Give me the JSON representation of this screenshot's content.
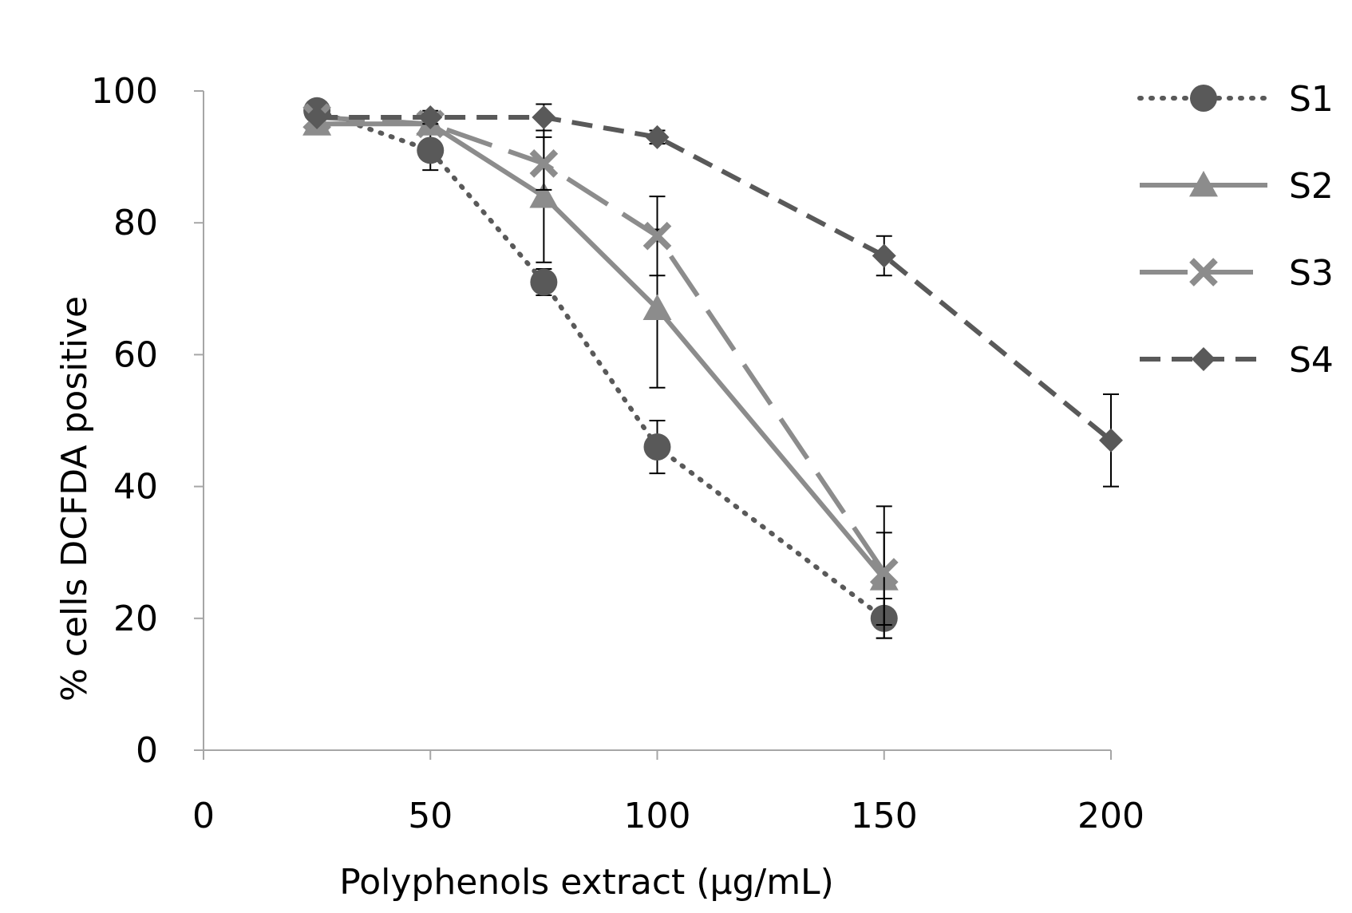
{
  "chart_data": {
    "type": "line",
    "title": "",
    "xlabel": "Polyphenols extract (μg/mL)",
    "ylabel": "% cells DCFDA positive",
    "xlim": [
      0,
      200
    ],
    "ylim": [
      0,
      100
    ],
    "x_ticks": [
      0,
      50,
      100,
      150,
      200
    ],
    "y_ticks": [
      0,
      20,
      40,
      60,
      80,
      100
    ],
    "x_tick_labels": [
      "0",
      "50",
      "100",
      "150",
      "200"
    ],
    "y_tick_labels": [
      "0",
      "20",
      "40",
      "60",
      "80",
      "100"
    ],
    "grid": false,
    "legend_position": "right",
    "series": [
      {
        "name": "S1",
        "marker": "circle",
        "line": "dotted",
        "color": "#595959",
        "x": [
          25,
          50,
          75,
          100,
          150
        ],
        "values": [
          97,
          91,
          71,
          46,
          20
        ],
        "errors": [
          0,
          3,
          2,
          4,
          3
        ]
      },
      {
        "name": "S2",
        "marker": "triangle",
        "line": "solid",
        "color": "#8c8c8c",
        "x": [
          25,
          50,
          75,
          100,
          150
        ],
        "values": [
          95,
          95,
          84,
          67,
          26
        ],
        "errors": [
          0,
          0,
          10,
          12,
          7
        ]
      },
      {
        "name": "S3",
        "marker": "x",
        "line": "longdash",
        "color": "#8c8c8c",
        "x": [
          25,
          50,
          75,
          100,
          150
        ],
        "values": [
          96,
          95,
          89,
          78,
          27
        ],
        "errors": [
          0,
          0,
          4,
          6,
          10
        ]
      },
      {
        "name": "S4",
        "marker": "diamond",
        "line": "dashed",
        "color": "#595959",
        "x": [
          25,
          50,
          75,
          100,
          150,
          200
        ],
        "values": [
          96,
          96,
          96,
          93,
          75,
          47
        ],
        "errors": [
          0,
          1,
          2,
          1,
          3,
          7
        ]
      }
    ]
  }
}
